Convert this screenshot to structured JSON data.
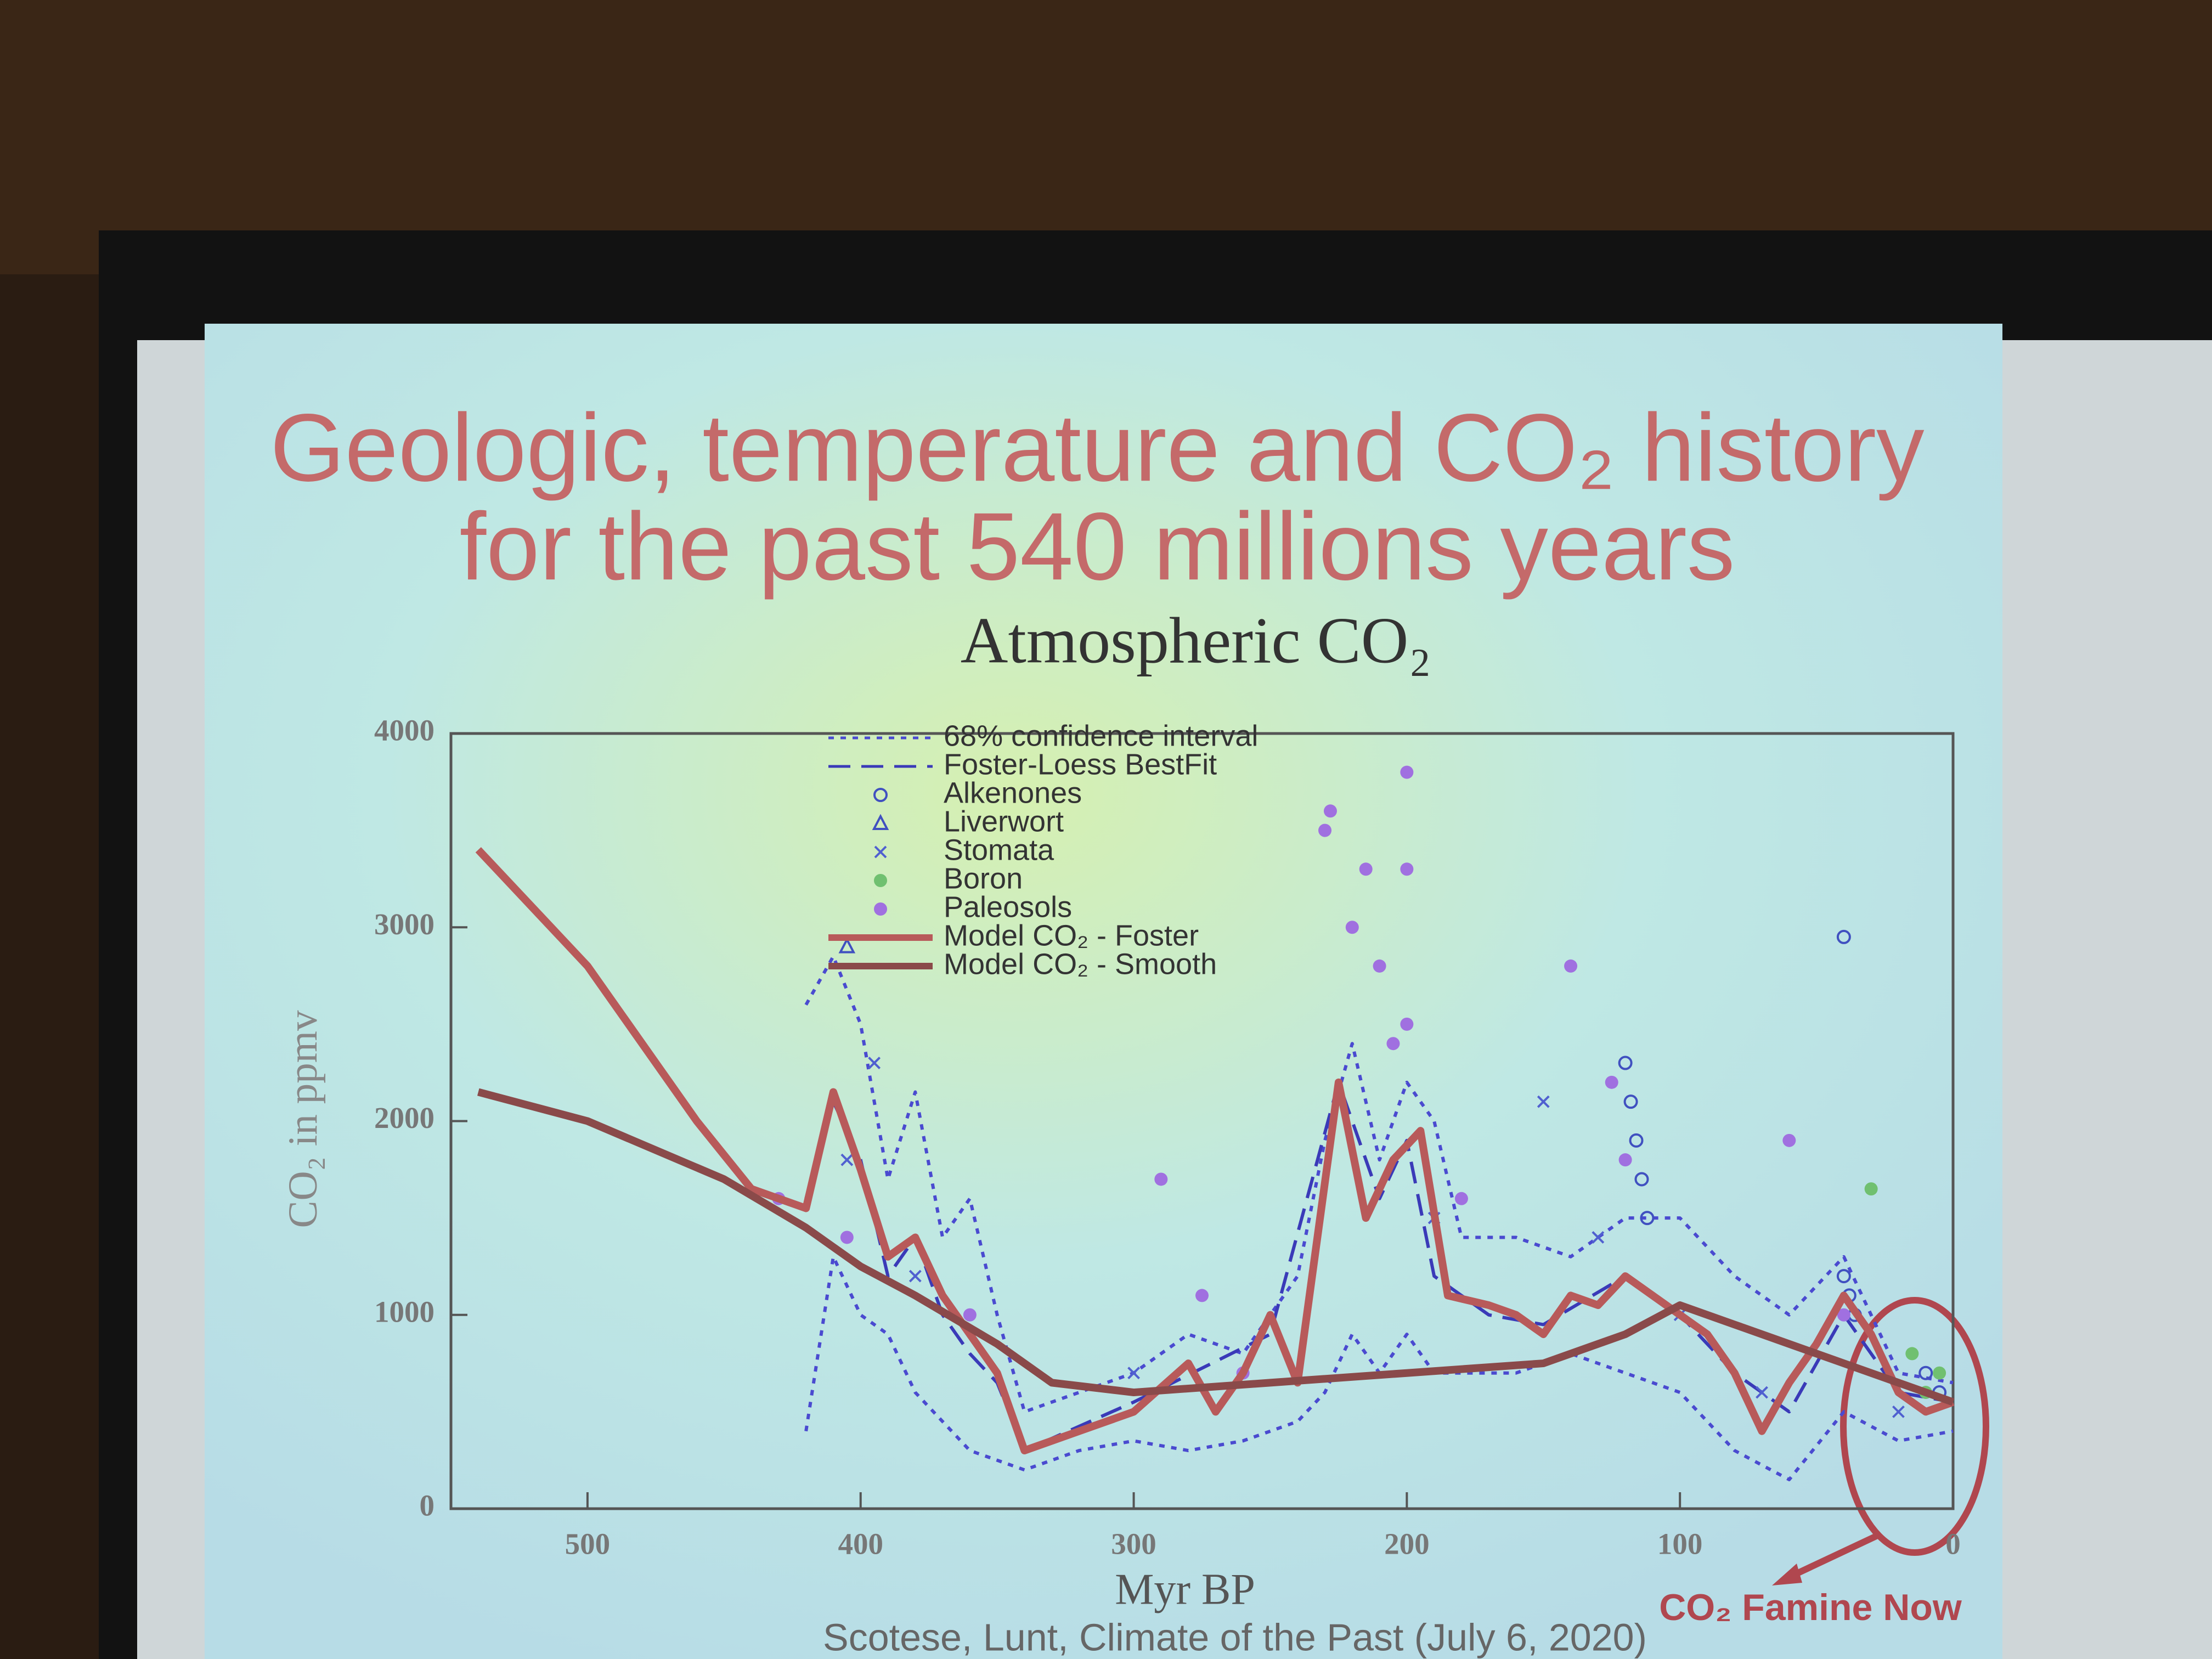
{
  "header": {
    "title_line1": "Geologic, temperature and CO₂ history",
    "title_line2": "for the past 540 millions years"
  },
  "chart_data": {
    "type": "line",
    "title": "Atmospheric CO₂",
    "x_label": "Myr BP",
    "y_label": "CO₂ in ppmv",
    "xlim": [
      550,
      0
    ],
    "xticks": [
      500,
      400,
      300,
      200,
      100,
      0
    ],
    "ylim": [
      0,
      4000
    ],
    "yticks": [
      0,
      1000,
      2000,
      3000,
      4000
    ],
    "annotation": "CO₂ Famine Now",
    "source": "Scotese, Lunt, Climate of the Past (July 6, 2020)",
    "series": [
      {
        "name": "68% confidence interval",
        "color": "#4a4ad0",
        "style": "dotted",
        "x": [
          420,
          410,
          400,
          390,
          380,
          370,
          360,
          350,
          340,
          330,
          320,
          300,
          280,
          260,
          240,
          230,
          220,
          210,
          200,
          190,
          180,
          160,
          140,
          120,
          100,
          80,
          60,
          40,
          20,
          0
        ],
        "values": [
          2600,
          2850,
          2500,
          1700,
          2150,
          1400,
          1600,
          1000,
          500,
          550,
          600,
          700,
          900,
          800,
          1200,
          1900,
          2400,
          1800,
          2200,
          2000,
          1400,
          1400,
          1300,
          1500,
          1500,
          1200,
          1000,
          1300,
          700,
          650
        ],
        "lower": [
          400,
          1300,
          1000,
          900,
          600,
          450,
          300,
          250,
          200,
          250,
          300,
          350,
          300,
          350,
          450,
          600,
          900,
          700,
          900,
          700,
          700,
          700,
          800,
          700,
          600,
          300,
          150,
          500,
          350,
          400
        ]
      },
      {
        "name": "Foster-Loess BestFit",
        "color": "#3a3ab8",
        "style": "dashed",
        "x": [
          420,
          410,
          400,
          390,
          380,
          370,
          360,
          350,
          340,
          300,
          250,
          225,
          210,
          200,
          190,
          170,
          150,
          120,
          100,
          80,
          60,
          40,
          20,
          0
        ],
        "values": [
          1600,
          2100,
          1800,
          1200,
          1400,
          1000,
          800,
          650,
          300,
          550,
          900,
          2200,
          1600,
          1900,
          1200,
          1000,
          950,
          1200,
          1000,
          700,
          500,
          1000,
          600,
          550
        ]
      },
      {
        "name": "Alkenones",
        "color": "#4050c0",
        "style": "circle",
        "x": [
          120,
          118,
          116,
          114,
          112,
          40,
          38,
          36,
          10,
          5,
          40
        ],
        "values": [
          2300,
          2100,
          1900,
          1700,
          1500,
          1200,
          1100,
          1000,
          700,
          600,
          2950
        ]
      },
      {
        "name": "Liverwort",
        "color": "#4050c0",
        "style": "triangle",
        "x": [
          405
        ],
        "values": [
          2900
        ]
      },
      {
        "name": "Stomata",
        "color": "#5060d0",
        "style": "x",
        "x": [
          405,
          395,
          380,
          300,
          190,
          150,
          130,
          100,
          70,
          20
        ],
        "values": [
          1800,
          2300,
          1200,
          700,
          1500,
          2100,
          1400,
          1000,
          600,
          500
        ]
      },
      {
        "name": "Boron",
        "color": "#70c070",
        "style": "dot",
        "x": [
          30,
          15,
          10,
          5
        ],
        "values": [
          1650,
          800,
          600,
          700
        ]
      },
      {
        "name": "Paleosols",
        "color": "#a070e0",
        "style": "dot",
        "x": [
          430,
          405,
          360,
          290,
          275,
          260,
          230,
          228,
          220,
          215,
          210,
          205,
          200,
          200,
          200,
          180,
          140,
          125,
          120,
          60,
          40
        ],
        "values": [
          1600,
          1400,
          1000,
          1700,
          1100,
          700,
          3500,
          3600,
          3000,
          3300,
          2800,
          2400,
          3800,
          3300,
          2500,
          1600,
          2800,
          2200,
          1800,
          1900,
          1000
        ]
      },
      {
        "name": "Model CO₂ - Foster",
        "color": "#b85a5a",
        "style": "solid",
        "x": [
          540,
          500,
          460,
          440,
          420,
          410,
          400,
          390,
          380,
          370,
          360,
          350,
          340,
          320,
          300,
          280,
          270,
          260,
          250,
          240,
          225,
          215,
          205,
          195,
          185,
          170,
          160,
          150,
          140,
          130,
          120,
          100,
          90,
          80,
          70,
          60,
          50,
          40,
          30,
          20,
          10,
          0
        ],
        "values": [
          3400,
          2800,
          2000,
          1650,
          1550,
          2150,
          1750,
          1300,
          1400,
          1100,
          900,
          700,
          300,
          400,
          500,
          750,
          500,
          700,
          1000,
          650,
          2200,
          1500,
          1800,
          1950,
          1100,
          1050,
          1000,
          900,
          1100,
          1050,
          1200,
          1000,
          900,
          700,
          400,
          650,
          850,
          1100,
          900,
          600,
          500,
          550
        ]
      },
      {
        "name": "Model CO₂ - Smooth",
        "color": "#8a4a4a",
        "style": "solid",
        "x": [
          540,
          500,
          450,
          420,
          400,
          380,
          350,
          330,
          300,
          250,
          200,
          150,
          120,
          100,
          80,
          60,
          40,
          20,
          0
        ],
        "values": [
          2150,
          2000,
          1700,
          1450,
          1250,
          1100,
          850,
          650,
          600,
          650,
          700,
          750,
          900,
          1050,
          950,
          850,
          750,
          650,
          550
        ]
      }
    ]
  }
}
